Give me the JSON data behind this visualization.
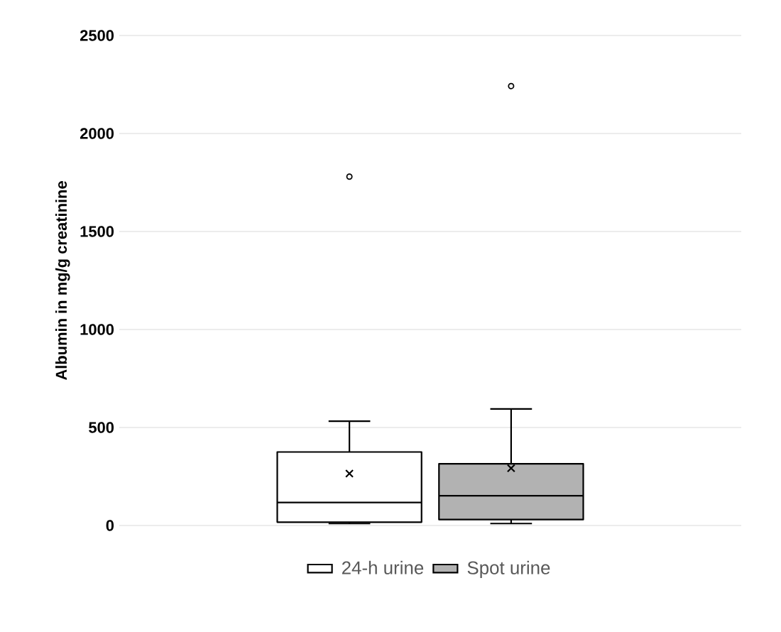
{
  "chart_data": {
    "type": "box",
    "ylabel": "Albumin in mg/g creatinine",
    "categories": [
      null
    ],
    "series": [
      {
        "name": "24-h urine",
        "color": "#000000",
        "boxes": [
          {
            "low": 10,
            "q1": 17,
            "median": 117,
            "q3": 375,
            "high": 532,
            "mean": 265,
            "outliers": [
              1780
            ]
          }
        ]
      },
      {
        "name": "Spot urine",
        "color": "#000000",
        "boxes": [
          {
            "low": 10,
            "q1": 30,
            "median": 152,
            "q3": 315,
            "high": 595,
            "mean": 292,
            "outliers": [
              2242
            ]
          }
        ]
      }
    ],
    "ylim": [
      0,
      2500
    ],
    "yticks": [
      0,
      500,
      1000,
      1500,
      2000,
      2500
    ],
    "grid": "y",
    "legend": "bottom"
  }
}
